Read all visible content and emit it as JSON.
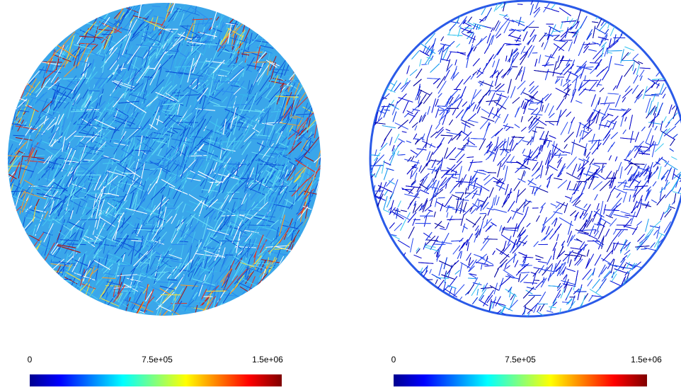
{
  "panels": [
    {
      "colorbar": {
        "labels": [
          "0",
          "7.5e+05",
          "1.5e+06"
        ]
      }
    },
    {
      "colorbar": {
        "labels": [
          "0",
          "7.5e+05",
          "1.5e+06"
        ]
      }
    }
  ]
}
